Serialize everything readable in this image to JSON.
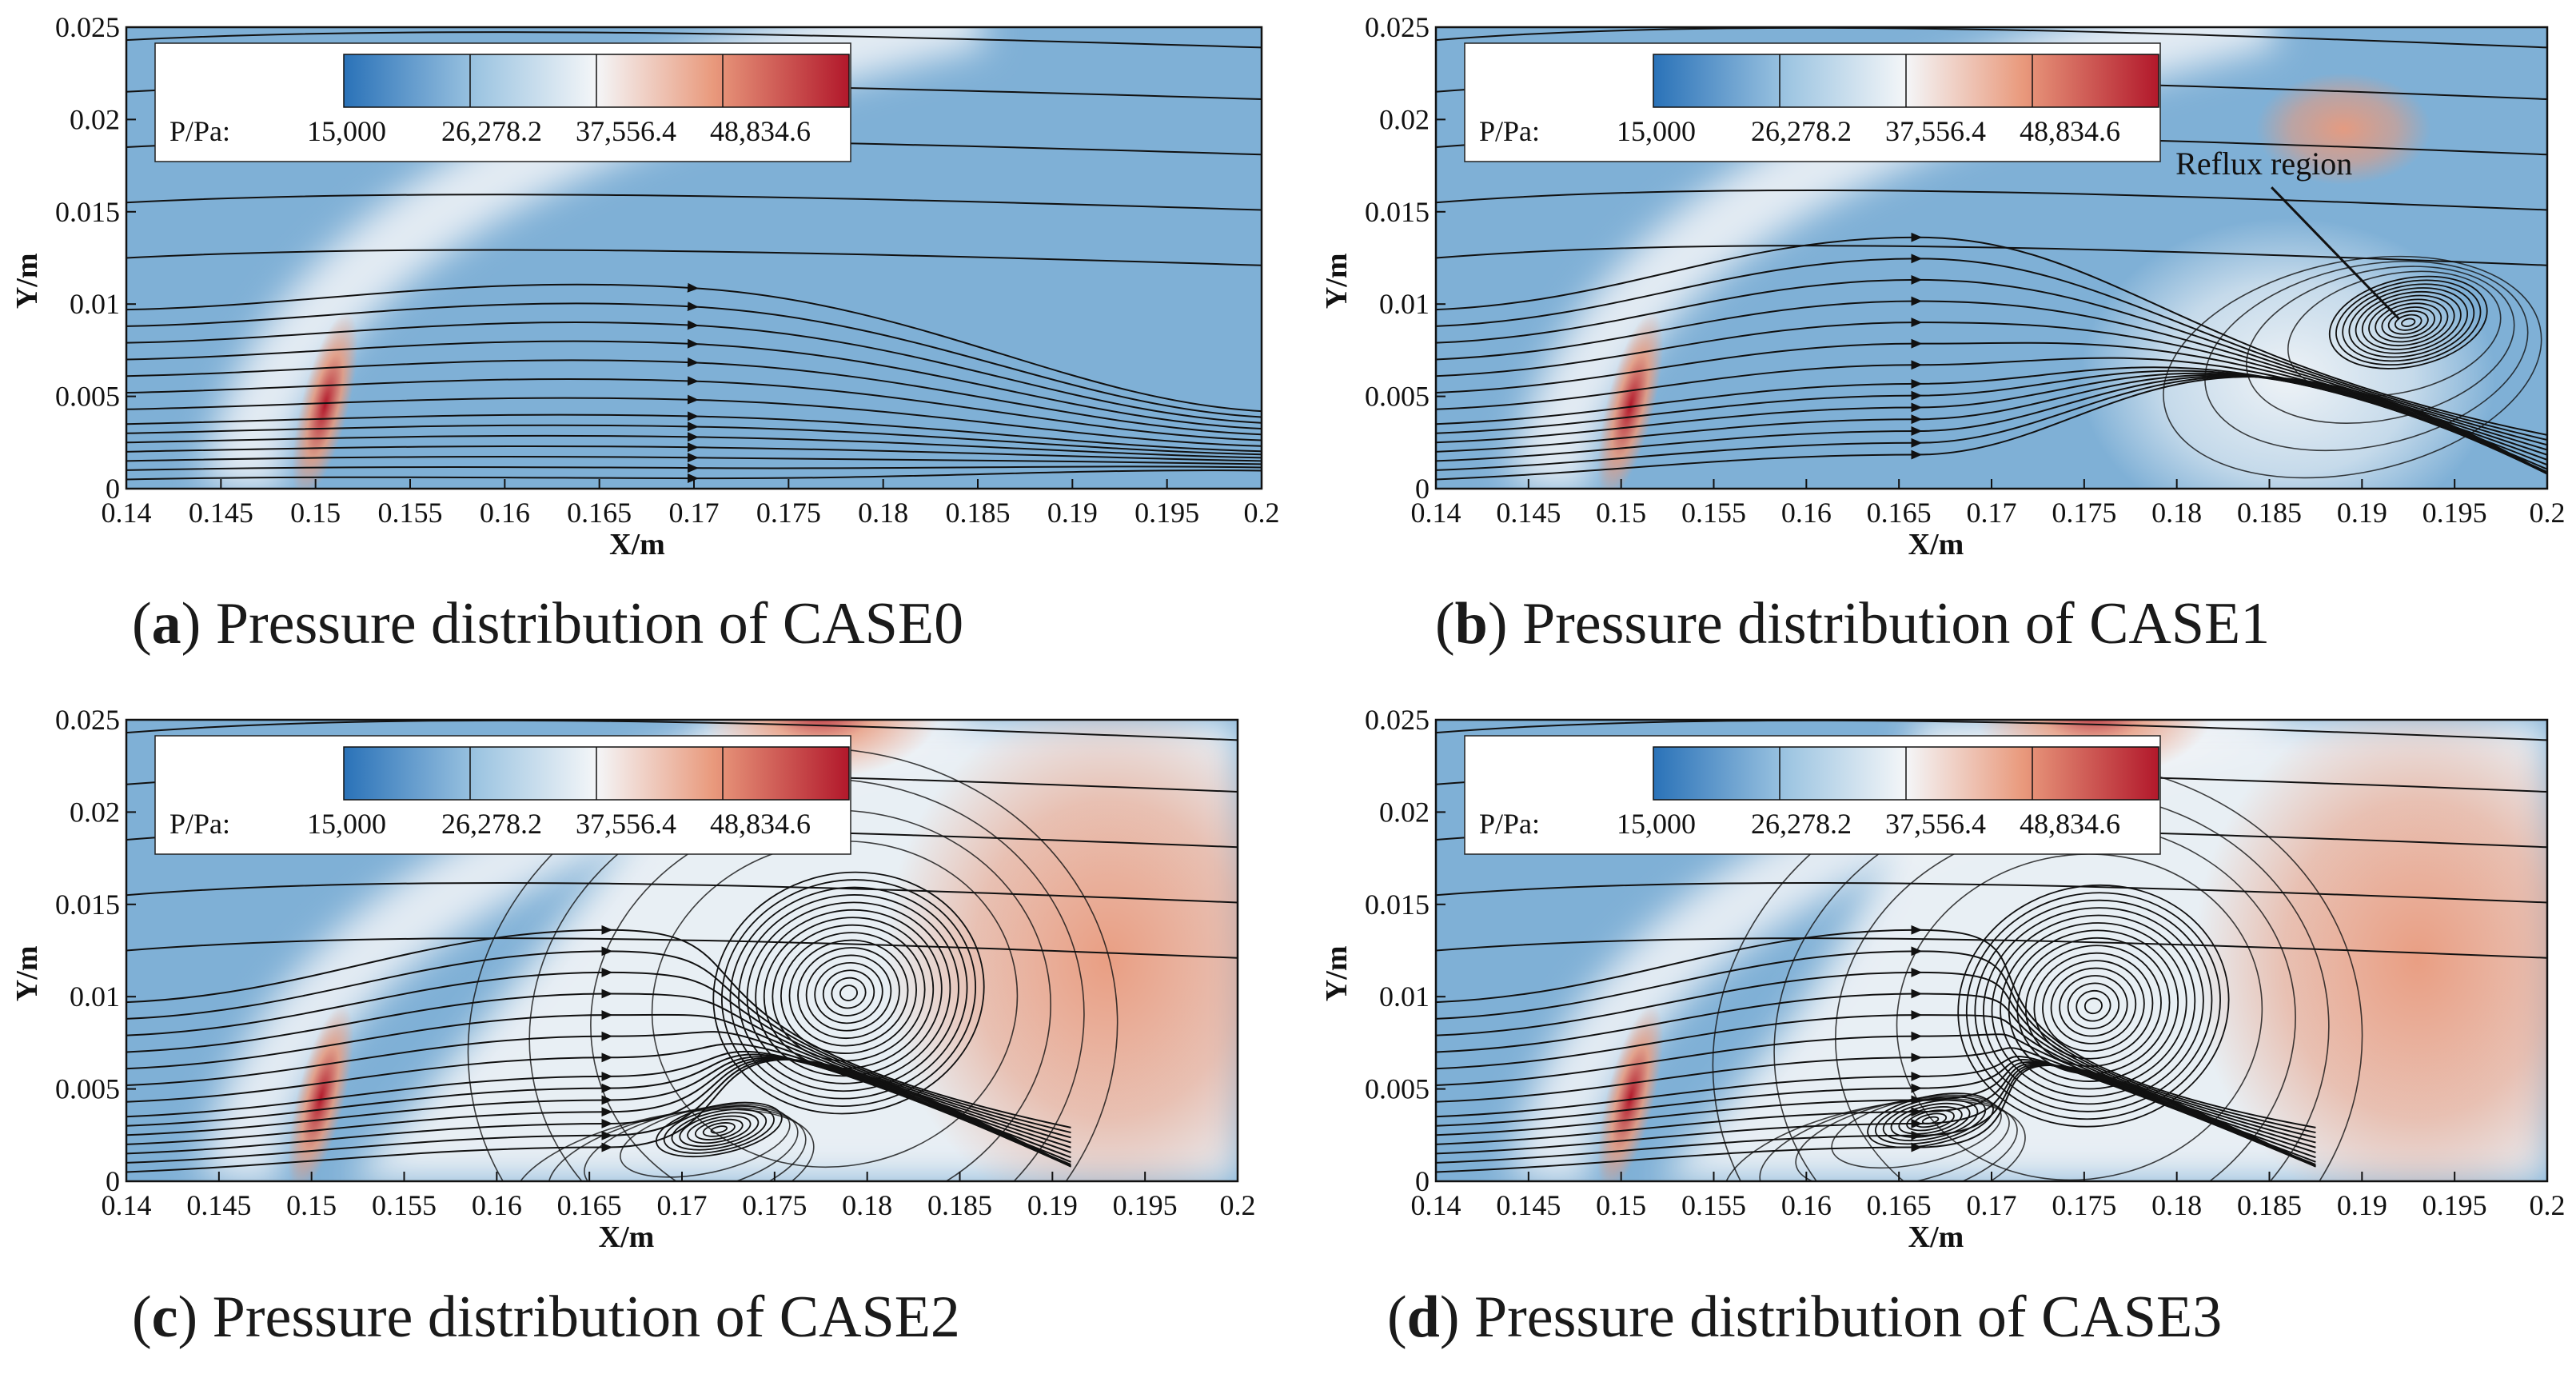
{
  "figure_panels": [
    {
      "label": "a",
      "caption_text": "Pressure distribution of CASE0"
    },
    {
      "label": "b",
      "caption_text": "Pressure distribution of CASE1"
    },
    {
      "label": "c",
      "caption_text": "Pressure distribution of CASE2"
    },
    {
      "label": "d",
      "caption_text": "Pressure distribution of CASE3"
    }
  ],
  "colors": {
    "low": "#2a72b8",
    "background_low": "#7fb0d6",
    "mid": "#f4f6f8",
    "high": "#e99a7d",
    "max": "#b2182b",
    "streamline": "#111111"
  },
  "chart_data": [
    {
      "type": "heatmap",
      "case": "CASE0",
      "xlabel": "X/m",
      "ylabel": "Y/m",
      "xlim": [
        0.14,
        0.2
      ],
      "ylim": [
        0,
        0.025
      ],
      "x_ticks": [
        "0.14",
        "0.145",
        "0.15",
        "0.155",
        "0.16",
        "0.165",
        "0.17",
        "0.175",
        "0.18",
        "0.185",
        "0.19",
        "0.195",
        "0.2"
      ],
      "y_ticks": [
        "0",
        "0.005",
        "0.01",
        "0.015",
        "0.02",
        "0.025"
      ],
      "legend": {
        "title": "P/Pa:",
        "levels": [
          "15,000",
          "26,278.2",
          "37,556.4",
          "48,834.6"
        ]
      },
      "annotations": [],
      "vortices": []
    },
    {
      "type": "heatmap",
      "case": "CASE1",
      "xlabel": "X/m",
      "ylabel": "Y/m",
      "xlim": [
        0.14,
        0.2
      ],
      "ylim": [
        0,
        0.025
      ],
      "x_ticks": [
        "0.14",
        "0.145",
        "0.15",
        "0.155",
        "0.16",
        "0.165",
        "0.17",
        "0.175",
        "0.18",
        "0.185",
        "0.19",
        "0.195",
        "0.2"
      ],
      "y_ticks": [
        "0",
        "0.005",
        "0.01",
        "0.015",
        "0.02",
        "0.025"
      ],
      "legend": {
        "title": "P/Pa:",
        "levels": [
          "15,000",
          "26,278.2",
          "37,556.4",
          "48,834.6"
        ]
      },
      "annotations": [
        {
          "text": "Reflux region",
          "x": 0.189,
          "y": 0.0165,
          "arrow_to_x": 0.192,
          "arrow_to_y": 0.0092
        }
      ],
      "vortices": [
        {
          "x": 0.1925,
          "y": 0.009
        }
      ]
    },
    {
      "type": "heatmap",
      "case": "CASE2",
      "xlabel": "X/m",
      "ylabel": "Y/m",
      "xlim": [
        0.14,
        0.2
      ],
      "ylim": [
        0,
        0.025
      ],
      "x_ticks": [
        "0.14",
        "0.145",
        "0.15",
        "0.155",
        "0.16",
        "0.165",
        "0.17",
        "0.175",
        "0.18",
        "0.185",
        "0.19",
        "0.195",
        "0.2"
      ],
      "y_ticks": [
        "0",
        "0.005",
        "0.01",
        "0.015",
        "0.02",
        "0.025"
      ],
      "legend": {
        "title": "P/Pa:",
        "levels": [
          "15,000",
          "26,278.2",
          "37,556.4",
          "48,834.6"
        ]
      },
      "annotations": [],
      "vortices": [
        {
          "x": 0.179,
          "y": 0.0102
        },
        {
          "x": 0.172,
          "y": 0.0028
        }
      ]
    },
    {
      "type": "heatmap",
      "case": "CASE3",
      "xlabel": "X/m",
      "ylabel": "Y/m",
      "xlim": [
        0.14,
        0.2
      ],
      "ylim": [
        0,
        0.025
      ],
      "x_ticks": [
        "0.14",
        "0.145",
        "0.15",
        "0.155",
        "0.16",
        "0.165",
        "0.17",
        "0.175",
        "0.18",
        "0.185",
        "0.19",
        "0.195",
        "0.2"
      ],
      "y_ticks": [
        "0",
        "0.005",
        "0.01",
        "0.015",
        "0.02",
        "0.025"
      ],
      "legend": {
        "title": "P/Pa:",
        "levels": [
          "15,000",
          "26,278.2",
          "37,556.4",
          "48,834.6"
        ]
      },
      "annotations": [],
      "vortices": [
        {
          "x": 0.1755,
          "y": 0.0095
        },
        {
          "x": 0.1667,
          "y": 0.0033
        }
      ]
    }
  ]
}
